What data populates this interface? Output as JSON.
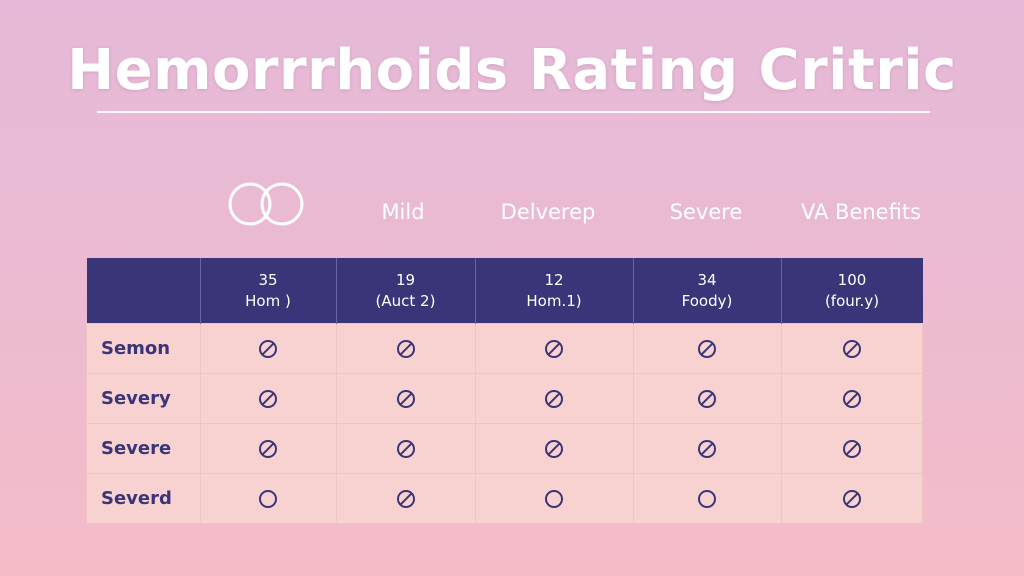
{
  "title": "Hemorrrhoids Rating Critric",
  "column_labels": [
    {
      "icon": "two-rings-icon"
    },
    {
      "label": "Mild"
    },
    {
      "label": "Delverep"
    },
    {
      "label": "Severe"
    },
    {
      "label": "VA Benefits"
    }
  ],
  "table": {
    "header": [
      {
        "value": "35",
        "sub": "Hom )"
      },
      {
        "value": "19",
        "sub": "(Auct 2)"
      },
      {
        "value": "12",
        "sub": "Hom.1)"
      },
      {
        "value": "34",
        "sub": "Foody)"
      },
      {
        "value": "100",
        "sub": "(four.y)"
      }
    ],
    "rows": [
      {
        "label": "Semon",
        "cells": [
          "slashed-circle",
          "slashed-circle",
          "slashed-circle",
          "slashed-circle",
          "slashed-circle"
        ]
      },
      {
        "label": "Severy",
        "cells": [
          "slashed-circle",
          "slashed-circle",
          "slashed-circle",
          "slashed-circle",
          "slashed-circle"
        ]
      },
      {
        "label": "Severe",
        "cells": [
          "slashed-circle",
          "slashed-circle",
          "slashed-circle",
          "slashed-circle",
          "slashed-circle"
        ]
      },
      {
        "label": "Severd",
        "cells": [
          "empty-circle",
          "slashed-circle",
          "empty-circle",
          "empty-circle",
          "slashed-circle"
        ]
      }
    ]
  },
  "colors": {
    "header_bg": "#3a3478",
    "cell_bg": "#f8d2d0",
    "text_dark": "#3a3478"
  }
}
